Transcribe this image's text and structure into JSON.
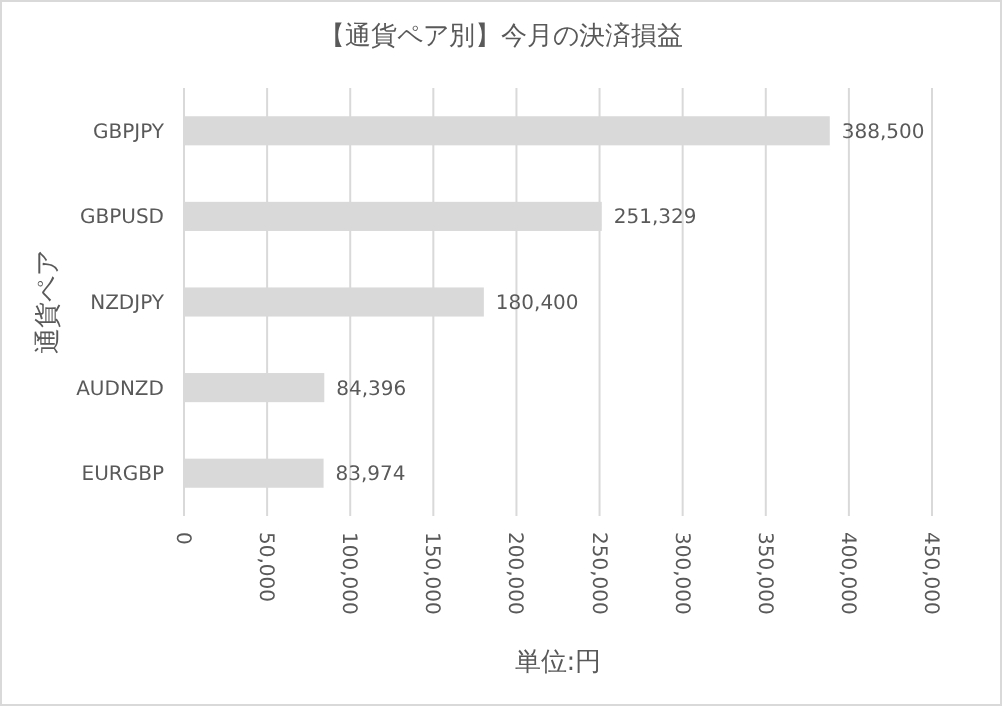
{
  "chart_data": {
    "type": "bar",
    "orientation": "horizontal",
    "title": "【通貨ペア別】今月の決済損益",
    "xlabel": "単位:円",
    "ylabel": "通貨ペア",
    "categories": [
      "GBPJPY",
      "GBPUSD",
      "NZDJPY",
      "AUDNZD",
      "EURGBP"
    ],
    "values": [
      388500,
      251329,
      180400,
      84396,
      83974
    ],
    "value_labels": [
      "388,500",
      "251,329",
      "180,400",
      "84,396",
      "83,974"
    ],
    "color": "#d9d9d9",
    "grid": "x",
    "xlim": [
      0,
      450000
    ],
    "xticks": [
      {
        "value": 0,
        "label": "0"
      },
      {
        "value": 50000,
        "label": "50,000"
      },
      {
        "value": 100000,
        "label": "100,000"
      },
      {
        "value": 150000,
        "label": "150,000"
      },
      {
        "value": 200000,
        "label": "200,000"
      },
      {
        "value": 250000,
        "label": "250,000"
      },
      {
        "value": 300000,
        "label": "300,000"
      },
      {
        "value": 350000,
        "label": "350,000"
      },
      {
        "value": 400000,
        "label": "400,000"
      },
      {
        "value": 450000,
        "label": "450,000"
      }
    ]
  }
}
